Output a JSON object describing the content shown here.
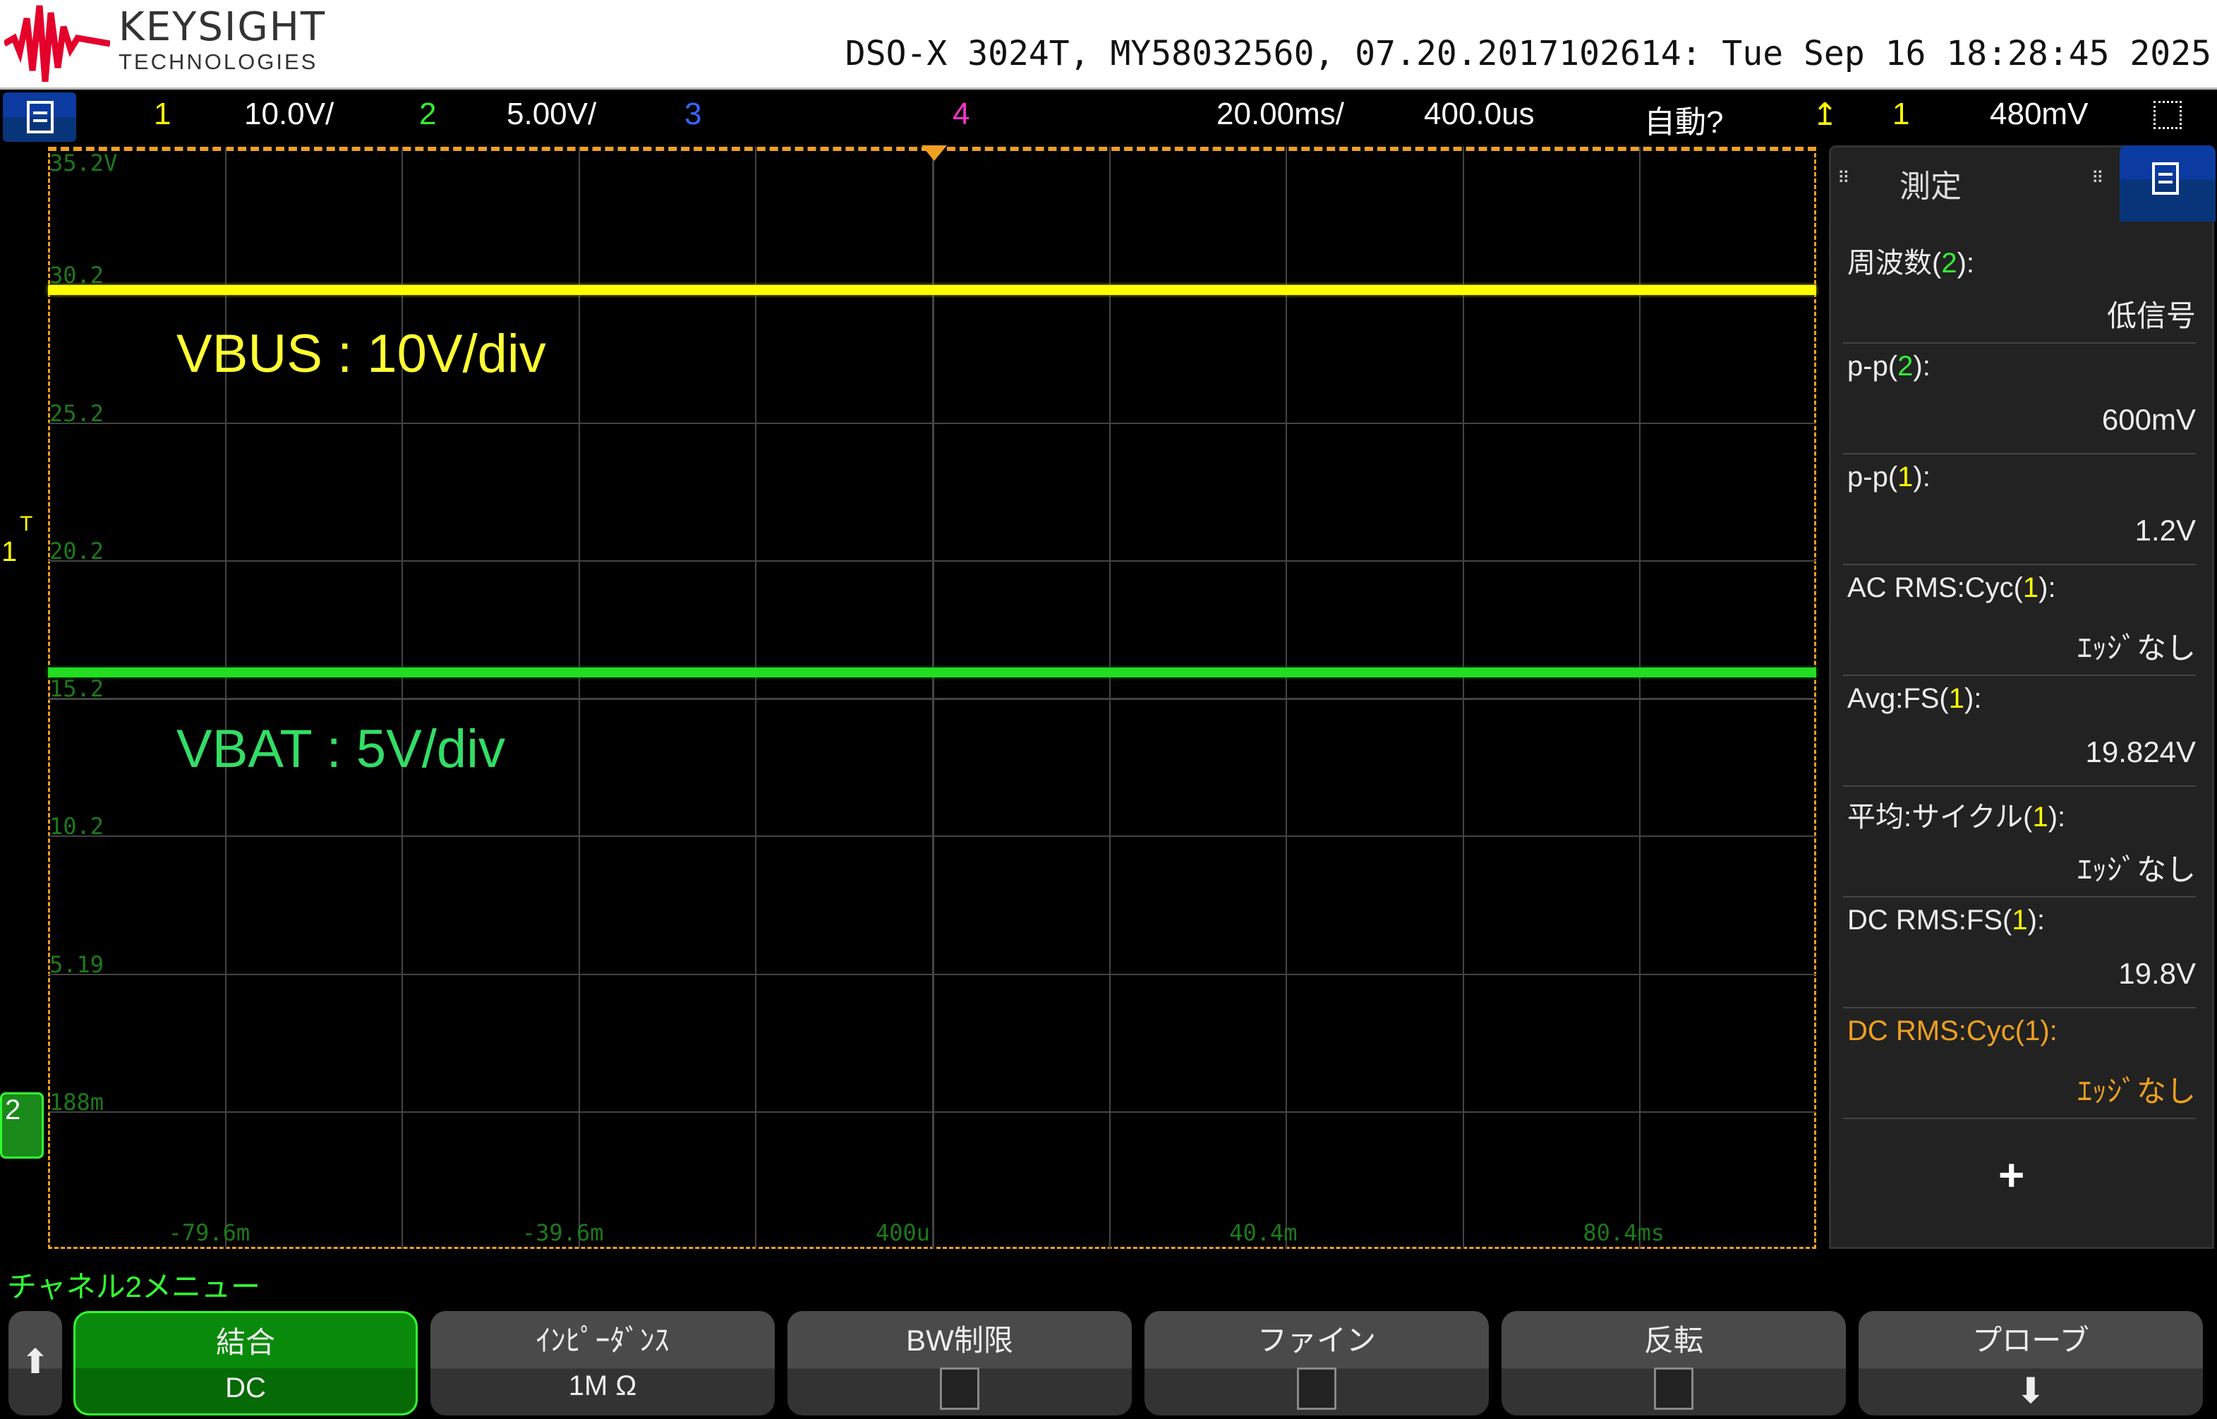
{
  "header": {
    "brand": "KEYSIGHT",
    "brand_sub": "TECHNOLOGIES",
    "brand_color": "#e4002b",
    "instrument": "DSO-X 3024T, MY58032560, 07.20.2017102614: Tue Sep 16 18:28:45 2025"
  },
  "toolbar": {
    "ch1": "1",
    "ch1_scale": "10.0V/",
    "ch2": "2",
    "ch2_scale": "5.00V/",
    "ch3": "3",
    "ch4": "4",
    "timebase": "20.00ms/",
    "delay": "400.0us",
    "trigger_mode": "自動?",
    "trigger_src": "1",
    "trigger_level": "480mV"
  },
  "colors": {
    "ch1": "#ffff00",
    "ch2": "#33ee33",
    "ch3": "#3366ff",
    "ch4": "#ff33cc",
    "accent": "#f0a020"
  },
  "graticule": {
    "y_labels": [
      "35.2V",
      "30.2",
      "25.2",
      "20.2",
      "15.2",
      "10.2",
      "5.19",
      "188m"
    ],
    "x_labels": [
      "-79.6m",
      "-39.6m",
      "400u",
      "40.4m",
      "80.4ms"
    ],
    "markers": {
      "trigger": "T",
      "ch1": "1",
      "ch2": "2"
    }
  },
  "annotations": {
    "vbus": "VBUS : 10V/div",
    "vbat": "VBAT : 5V/div",
    "vbus_color": "#ffff33",
    "vbat_color": "#33dd66"
  },
  "measure_panel": {
    "title": "測定",
    "add": "+",
    "items": [
      {
        "pre": "周波数(",
        "ch": "2",
        "post": "):",
        "value": "低信号"
      },
      {
        "pre": "p-p(",
        "ch": "2",
        "post": "):",
        "value": "600mV"
      },
      {
        "pre": "p-p(",
        "ch": "1",
        "post": "):",
        "value": "1.2V"
      },
      {
        "pre": "AC RMS:Cyc(",
        "ch": "1",
        "post": "):",
        "value": "ｴｯｼﾞなし"
      },
      {
        "pre": "Avg:FS(",
        "ch": "1",
        "post": "):",
        "value": "19.824V"
      },
      {
        "pre": "平均:サイクル(",
        "ch": "1",
        "post": "):",
        "value": "ｴｯｼﾞなし"
      },
      {
        "pre": "DC RMS:FS(",
        "ch": "1",
        "post": "):",
        "value": "19.8V"
      },
      {
        "pre": "DC RMS:Cyc(",
        "ch": "1",
        "post": "):",
        "value": "ｴｯｼﾞなし"
      }
    ]
  },
  "softkeys": {
    "menu_title": "チャネル2メニュー",
    "coupling": {
      "label": "結合",
      "value": "DC"
    },
    "impedance": {
      "label": "ｲﾝﾋﾟｰﾀﾞﾝｽ",
      "value": "1M Ω"
    },
    "bw_limit": {
      "label": "BW制限"
    },
    "fine": {
      "label": "ファイン"
    },
    "invert": {
      "label": "反転"
    },
    "probe": {
      "label": "プローブ"
    }
  }
}
